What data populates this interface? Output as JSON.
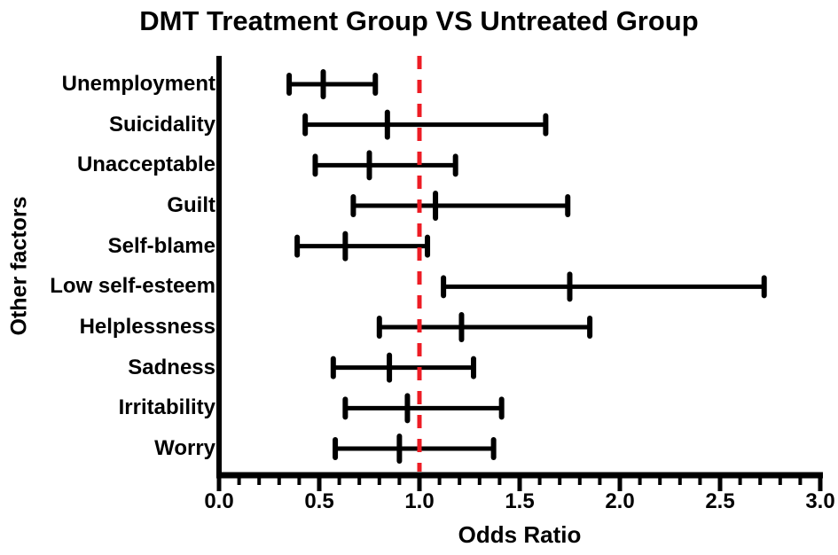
{
  "title": "DMT Treatment Group VS Untreated Group",
  "x_axis": {
    "label": "Odds Ratio",
    "min": 0.0,
    "max": 3.0,
    "major_tick_labels": [
      "0.0",
      "0.5",
      "1.0",
      "1.5",
      "2.0",
      "2.5",
      "3.0"
    ],
    "major_tick_values": [
      0.0,
      0.5,
      1.0,
      1.5,
      2.0,
      2.5,
      3.0
    ],
    "minor_tick_step": 0.1
  },
  "y_axis": {
    "label": "Other factors"
  },
  "reference_line": {
    "value": 1.0,
    "style": "dashed",
    "color": "#ED1C24"
  },
  "colors": {
    "axis": "#000000",
    "bars": "#000000",
    "reference": "#ED1C24",
    "background": "#ffffff"
  },
  "chart_data": {
    "type": "forest-errorbar",
    "title": "DMT Treatment Group VS Untreated Group",
    "xlabel": "Odds Ratio",
    "ylabel": "Other factors",
    "xlim": [
      0.0,
      3.0
    ],
    "grid": false,
    "legend": false,
    "reference_line_x": 1.0,
    "categories": [
      "Unemployment",
      "Suicidality",
      "Unacceptable",
      "Guilt",
      "Self-blame",
      "Low self-esteem",
      "Helplessness",
      "Sadness",
      "Irritability",
      "Worry"
    ],
    "points": [
      {
        "label": "Unemployment",
        "or": 0.52,
        "ci_low": 0.35,
        "ci_high": 0.78
      },
      {
        "label": "Suicidality",
        "or": 0.84,
        "ci_low": 0.43,
        "ci_high": 1.63
      },
      {
        "label": "Unacceptable",
        "or": 0.75,
        "ci_low": 0.48,
        "ci_high": 1.18
      },
      {
        "label": "Guilt",
        "or": 1.08,
        "ci_low": 0.67,
        "ci_high": 1.74
      },
      {
        "label": "Self-blame",
        "or": 0.63,
        "ci_low": 0.39,
        "ci_high": 1.04
      },
      {
        "label": "Low self-esteem",
        "or": 1.75,
        "ci_low": 1.12,
        "ci_high": 2.72
      },
      {
        "label": "Helplessness",
        "or": 1.21,
        "ci_low": 0.8,
        "ci_high": 1.85
      },
      {
        "label": "Sadness",
        "or": 0.85,
        "ci_low": 0.57,
        "ci_high": 1.27
      },
      {
        "label": "Irritability",
        "or": 0.94,
        "ci_low": 0.63,
        "ci_high": 1.41
      },
      {
        "label": "Worry",
        "or": 0.9,
        "ci_low": 0.58,
        "ci_high": 1.37
      }
    ]
  }
}
